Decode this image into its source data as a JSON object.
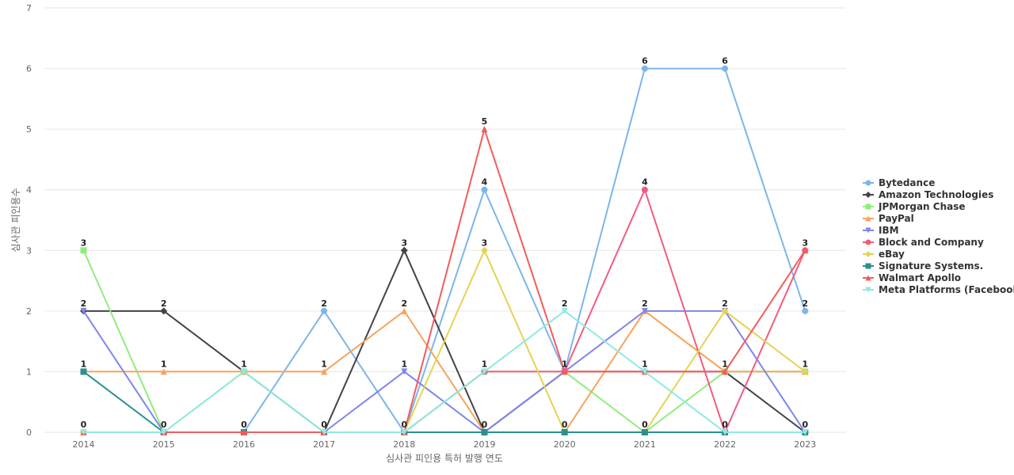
{
  "chart_data": {
    "type": "line",
    "title": "",
    "xlabel": "심사관 피인용 특허 발행 연도",
    "ylabel": "심사관 피인용수",
    "x": [
      "2014",
      "2015",
      "2016",
      "2017",
      "2018",
      "2019",
      "2020",
      "2021",
      "2022",
      "2023"
    ],
    "yticks": [
      "0",
      "1",
      "2",
      "3",
      "4",
      "5",
      "6",
      "7"
    ],
    "ylim": [
      0,
      7
    ],
    "grid": true,
    "legend_position": "right",
    "series": [
      {
        "name": "Bytedance",
        "color": "#7cb5ec",
        "marker": "circle",
        "values": [
          0,
          0,
          0,
          2,
          0,
          4,
          1,
          6,
          6,
          2
        ]
      },
      {
        "name": "Amazon Technologies",
        "color": "#434348",
        "marker": "diamond",
        "values": [
          2,
          2,
          1,
          0,
          3,
          0,
          1,
          1,
          1,
          0
        ]
      },
      {
        "name": "JPMorgan Chase",
        "color": "#90ed7d",
        "marker": "square",
        "values": [
          3,
          0,
          1,
          0,
          0,
          1,
          1,
          0,
          1,
          1
        ]
      },
      {
        "name": "PayPal",
        "color": "#f7a35c",
        "marker": "triangle",
        "values": [
          1,
          1,
          1,
          1,
          2,
          0,
          0,
          2,
          1,
          1
        ]
      },
      {
        "name": "IBM",
        "color": "#8085e9",
        "marker": "triangle-down",
        "values": [
          2,
          0,
          0,
          0,
          1,
          0,
          1,
          2,
          2,
          0
        ]
      },
      {
        "name": "Block and Company",
        "color": "#f15c80",
        "marker": "circle",
        "values": [
          0,
          0,
          0,
          0,
          0,
          1,
          1,
          4,
          0,
          3
        ]
      },
      {
        "name": "eBay",
        "color": "#e4d354",
        "marker": "diamond",
        "values": [
          0,
          0,
          0,
          0,
          0,
          3,
          0,
          0,
          2,
          1
        ]
      },
      {
        "name": "Signature Systems.",
        "color": "#2b908f",
        "marker": "square",
        "values": [
          1,
          0,
          0,
          0,
          0,
          0,
          0,
          0,
          0,
          0
        ]
      },
      {
        "name": "Walmart Apollo",
        "color": "#f45b5b",
        "marker": "triangle",
        "values": [
          0,
          0,
          0,
          0,
          0,
          5,
          1,
          1,
          1,
          3
        ]
      },
      {
        "name": "Meta Platforms (Facebook)",
        "color": "#91e8e1",
        "marker": "triangle-down",
        "values": [
          0,
          0,
          1,
          0,
          0,
          1,
          2,
          1,
          0,
          0
        ]
      }
    ],
    "data_labels": [
      {
        "x": "2014",
        "values": [
          "3",
          "2",
          "1",
          "0"
        ]
      },
      {
        "x": "2015",
        "values": [
          "2",
          "1",
          "0"
        ]
      },
      {
        "x": "2016",
        "values": [
          "1",
          "0"
        ]
      },
      {
        "x": "2017",
        "values": [
          "2",
          "1",
          "0"
        ]
      },
      {
        "x": "2018",
        "values": [
          "3",
          "2",
          "1",
          "0"
        ]
      },
      {
        "x": "2019",
        "values": [
          "5",
          "4",
          "3",
          "1",
          "0"
        ]
      },
      {
        "x": "2020",
        "values": [
          "2",
          "1",
          "0"
        ]
      },
      {
        "x": "2021",
        "values": [
          "6",
          "4",
          "2",
          "1",
          "0"
        ]
      },
      {
        "x": "2022",
        "values": [
          "6",
          "2",
          "1",
          "0"
        ]
      },
      {
        "x": "2023",
        "values": [
          "3",
          "2",
          "1",
          "0"
        ]
      }
    ]
  }
}
